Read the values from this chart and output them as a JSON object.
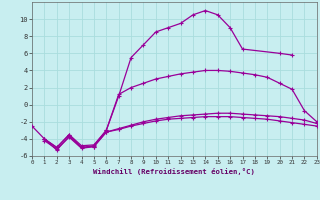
{
  "background_color": "#c8eef0",
  "grid_color": "#aadddd",
  "line_color": "#990099",
  "xlabel": "Windchill (Refroidissement éolien,°C)",
  "xlim": [
    0,
    23
  ],
  "ylim": [
    -6,
    12
  ],
  "yticks": [
    -6,
    -4,
    -2,
    0,
    2,
    4,
    6,
    8,
    10
  ],
  "xticks": [
    0,
    1,
    2,
    3,
    4,
    5,
    6,
    7,
    8,
    9,
    10,
    11,
    12,
    13,
    14,
    15,
    16,
    17,
    18,
    19,
    20,
    21,
    22,
    23
  ],
  "line1_x": [
    0,
    1,
    2,
    3,
    4,
    5,
    6,
    7,
    8,
    9,
    10,
    11,
    12,
    13,
    14,
    15,
    16,
    17,
    20,
    21
  ],
  "line1_y": [
    -2.5,
    -4.0,
    -5.0,
    -3.5,
    -4.8,
    -4.7,
    -3.0,
    1.0,
    5.5,
    7.0,
    8.5,
    9.0,
    9.5,
    10.5,
    11.0,
    10.5,
    9.0,
    6.5,
    6.0,
    5.8
  ],
  "line2_x": [
    1,
    2,
    3,
    4,
    5,
    6,
    7,
    8,
    9,
    10,
    11,
    12,
    13,
    14,
    15,
    16,
    17,
    18,
    19,
    20,
    21,
    22,
    23
  ],
  "line2_y": [
    -4.0,
    -5.0,
    -3.5,
    -5.0,
    -4.8,
    -3.0,
    1.2,
    2.0,
    2.5,
    3.0,
    3.3,
    3.6,
    3.8,
    4.0,
    4.0,
    3.9,
    3.7,
    3.5,
    3.2,
    2.5,
    1.8,
    -0.7,
    -2.0
  ],
  "line3_x": [
    1,
    2,
    3,
    4,
    5,
    6,
    7,
    8,
    9,
    10,
    11,
    12,
    13,
    14,
    15,
    16,
    17,
    18,
    19,
    20,
    21,
    22,
    23
  ],
  "line3_y": [
    -4.2,
    -5.2,
    -3.8,
    -5.1,
    -4.9,
    -3.2,
    -2.8,
    -2.4,
    -2.0,
    -1.7,
    -1.5,
    -1.3,
    -1.2,
    -1.1,
    -1.0,
    -1.0,
    -1.1,
    -1.2,
    -1.3,
    -1.4,
    -1.6,
    -1.8,
    -2.2
  ],
  "line4_x": [
    1,
    2,
    3,
    4,
    5,
    6,
    7,
    8,
    9,
    10,
    11,
    12,
    13,
    14,
    15,
    16,
    17,
    18,
    19,
    20,
    21,
    22,
    23
  ],
  "line4_y": [
    -4.0,
    -5.3,
    -3.7,
    -5.0,
    -4.9,
    -3.2,
    -2.9,
    -2.5,
    -2.2,
    -1.9,
    -1.7,
    -1.6,
    -1.5,
    -1.4,
    -1.4,
    -1.4,
    -1.5,
    -1.6,
    -1.7,
    -1.9,
    -2.1,
    -2.3,
    -2.5
  ]
}
